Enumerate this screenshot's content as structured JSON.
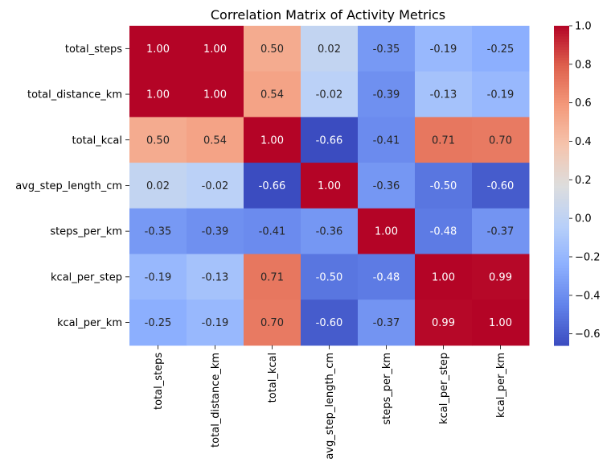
{
  "chart_data": {
    "type": "heatmap",
    "title": "Correlation Matrix of Activity Metrics",
    "xlabel": "",
    "ylabel": "",
    "rows": [
      "total_steps",
      "total_distance_km",
      "total_kcal",
      "avg_step_length_cm",
      "steps_per_km",
      "kcal_per_step",
      "kcal_per_km"
    ],
    "columns": [
      "total_steps",
      "total_distance_km",
      "total_kcal",
      "avg_step_length_cm",
      "steps_per_km",
      "kcal_per_step",
      "kcal_per_km"
    ],
    "values": [
      [
        1.0,
        1.0,
        0.5,
        0.02,
        -0.35,
        -0.19,
        -0.25
      ],
      [
        1.0,
        1.0,
        0.54,
        -0.02,
        -0.39,
        -0.13,
        -0.19
      ],
      [
        0.5,
        0.54,
        1.0,
        -0.66,
        -0.41,
        0.71,
        0.7
      ],
      [
        0.02,
        -0.02,
        -0.66,
        1.0,
        -0.36,
        -0.5,
        -0.6
      ],
      [
        -0.35,
        -0.39,
        -0.41,
        -0.36,
        1.0,
        -0.48,
        -0.37
      ],
      [
        -0.19,
        -0.13,
        0.71,
        -0.5,
        -0.48,
        1.0,
        0.99
      ],
      [
        -0.25,
        -0.19,
        0.7,
        -0.6,
        -0.37,
        0.99,
        1.0
      ]
    ],
    "colormap": "coolwarm",
    "vmin": -0.66,
    "vmax": 1.0,
    "colorbar_ticks": [
      1.0,
      0.8,
      0.6,
      0.4,
      0.2,
      0.0,
      -0.2,
      -0.4,
      -0.6
    ],
    "colorbar_tick_labels": [
      "1.0",
      "0.8",
      "0.6",
      "0.4",
      "0.2",
      "0.0",
      "−0.2",
      "−0.4",
      "−0.6"
    ],
    "annotation_format": "0.00",
    "grid": false,
    "legend": "colorbar-right"
  }
}
